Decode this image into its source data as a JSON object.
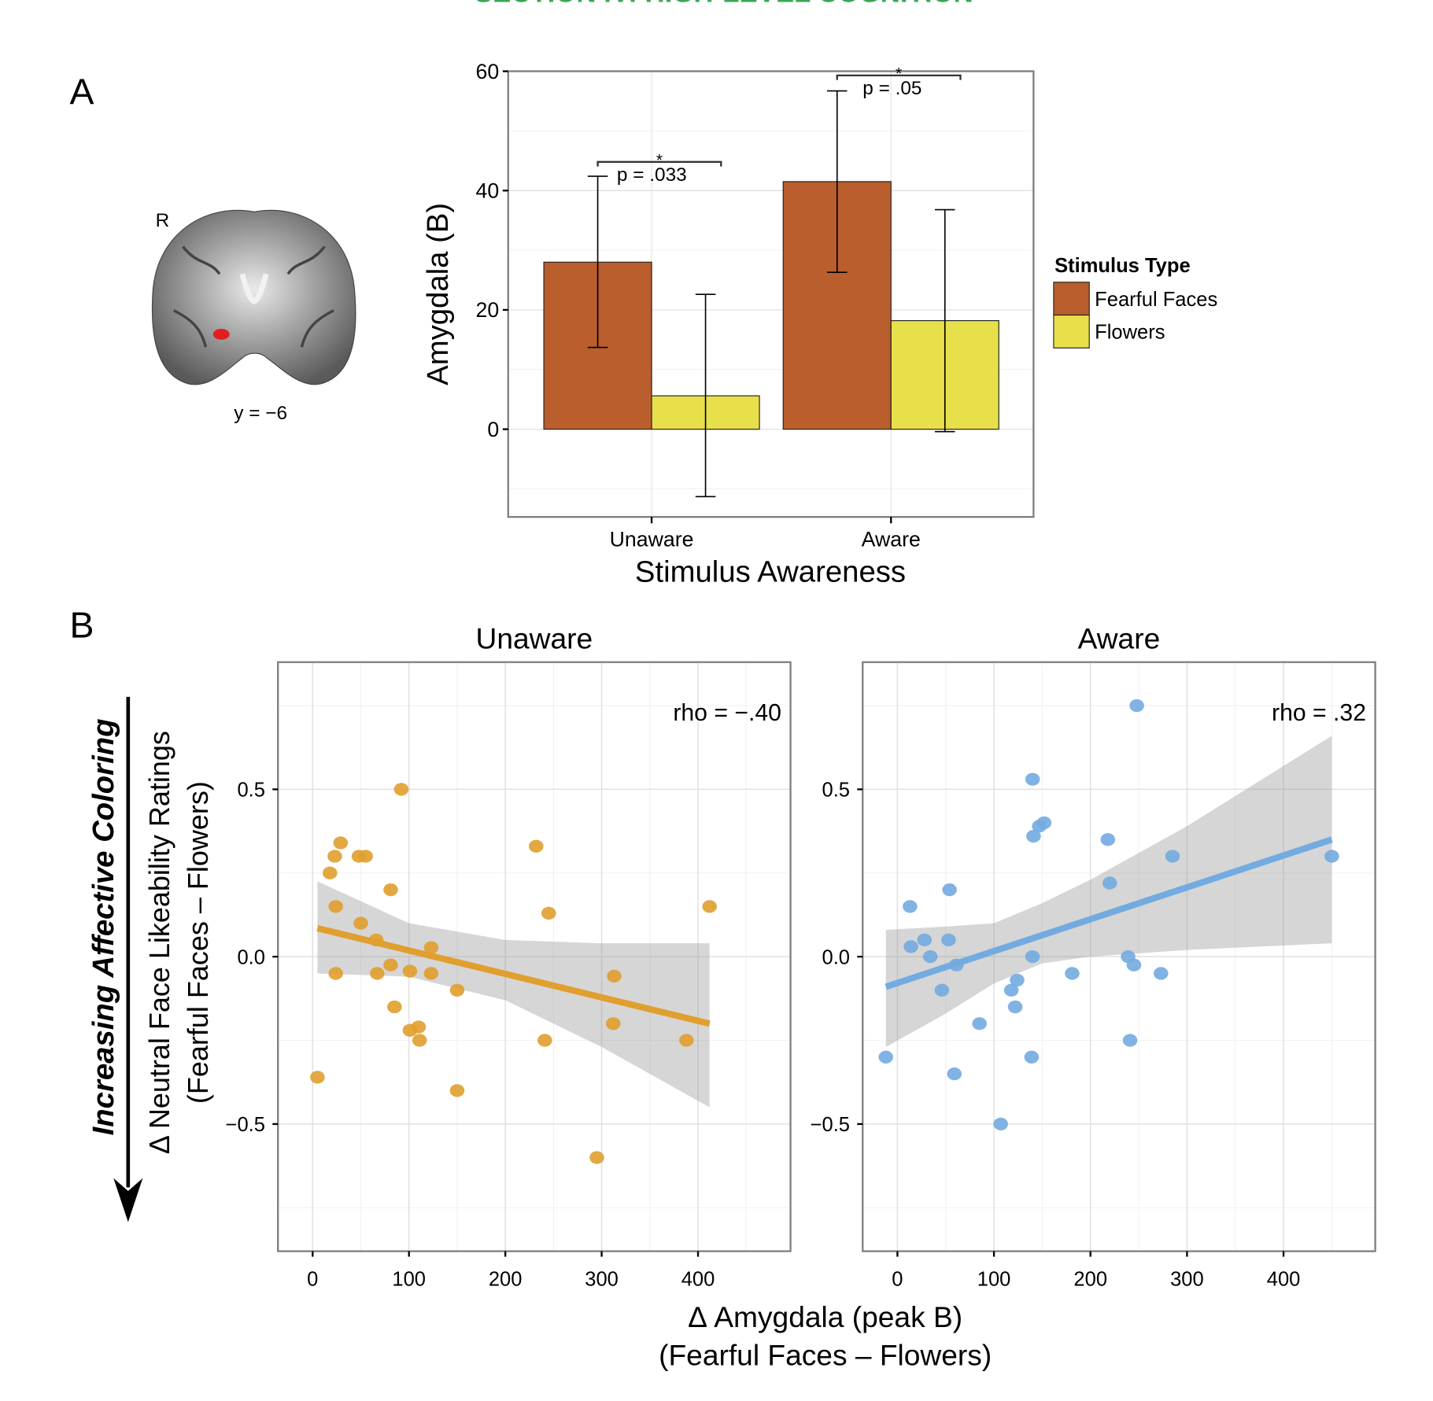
{
  "header": {
    "running_title": "SECTION IV: HIGH-LEVEL COGNITION",
    "color": "#3aa655"
  },
  "panel_labels": {
    "a": "A",
    "b": "B"
  },
  "brain": {
    "side_label": "R",
    "slice_label": "y = −6"
  },
  "colors": {
    "fearful": "#b95e2c",
    "flowers": "#e7e04a",
    "unaware_points": "#e09f2e",
    "aware_points": "#72abe0",
    "ribbon": "#999999"
  },
  "side_annotation": {
    "text": "Increasing Affective Coloring",
    "arrow": "down-arrow"
  },
  "chart_data": [
    {
      "type": "bar",
      "panel": "A",
      "xlabel": "Stimulus Awareness",
      "ylabel": "Amygdala (B)",
      "categories": [
        "Unaware",
        "Aware"
      ],
      "ylim": [
        -14.7,
        60
      ],
      "yticks": [
        0,
        20,
        40,
        60
      ],
      "grid": true,
      "legend": {
        "title": "Stimulus Type",
        "placement": "right"
      },
      "series": [
        {
          "name": "Fearful Faces",
          "values": [
            28.0,
            41.5
          ],
          "error_low": [
            13.7,
            26.3
          ],
          "error_high": [
            42.4,
            56.7
          ]
        },
        {
          "name": "Flowers",
          "values": [
            5.6,
            18.2
          ],
          "error_low": [
            -11.3,
            -0.4
          ],
          "error_high": [
            22.6,
            36.8
          ]
        }
      ],
      "annotations": [
        {
          "category": "Unaware",
          "star": "*",
          "text": "p = .033",
          "bracket_y": 44.8
        },
        {
          "category": "Aware",
          "star": "*",
          "text": "p = .05",
          "bracket_y": 59.3
        }
      ]
    },
    {
      "type": "scatter",
      "panel": "B",
      "title": "Unaware",
      "annotation": "rho = −.40",
      "xlim": [
        -36,
        496
      ],
      "ylim": [
        -0.88,
        0.88
      ],
      "xticks": [
        0,
        100,
        200,
        300,
        400
      ],
      "yticks": [
        -0.5,
        0.0,
        0.5
      ],
      "ytick_labels": [
        "−0.5",
        "0.0",
        "0.5"
      ],
      "grid": true,
      "points": [
        [
          5,
          -0.36
        ],
        [
          18,
          0.25
        ],
        [
          23,
          0.3
        ],
        [
          29,
          0.34
        ],
        [
          24,
          0.15
        ],
        [
          24,
          -0.05
        ],
        [
          48,
          0.3
        ],
        [
          55,
          0.3
        ],
        [
          50,
          0.1
        ],
        [
          66,
          0.05
        ],
        [
          67,
          -0.05
        ],
        [
          81,
          0.2
        ],
        [
          81,
          -0.025
        ],
        [
          85,
          -0.15
        ],
        [
          92,
          0.5
        ],
        [
          101,
          -0.22
        ],
        [
          110,
          -0.21
        ],
        [
          111,
          -0.25
        ],
        [
          101,
          -0.043
        ],
        [
          123,
          0.027
        ],
        [
          123,
          -0.05
        ],
        [
          150,
          -0.1
        ],
        [
          150,
          -0.4
        ],
        [
          232,
          0.33
        ],
        [
          245,
          0.13
        ],
        [
          241,
          -0.25
        ],
        [
          295,
          -0.6
        ],
        [
          313,
          -0.058
        ],
        [
          312,
          -0.2
        ],
        [
          388,
          -0.25
        ],
        [
          412,
          0.15
        ]
      ],
      "fit": {
        "x": [
          5,
          412
        ],
        "y": [
          0.085,
          -0.2
        ]
      },
      "ci": {
        "x": [
          5,
          100,
          200,
          300,
          412
        ],
        "upper": [
          0.225,
          0.1,
          0.05,
          0.04,
          0.04
        ],
        "lower": [
          -0.05,
          -0.06,
          -0.13,
          -0.27,
          -0.45
        ]
      }
    },
    {
      "type": "scatter",
      "panel": "B",
      "title": "Aware",
      "annotation": "rho = .32",
      "xlim": [
        -36,
        495
      ],
      "ylim": [
        -0.88,
        0.88
      ],
      "xticks": [
        0,
        100,
        200,
        300,
        400
      ],
      "yticks": [
        -0.5,
        0.0,
        0.5
      ],
      "ytick_labels": [
        "−0.5",
        "0.0",
        "0.5"
      ],
      "grid": true,
      "points": [
        [
          -12,
          -0.3
        ],
        [
          13,
          0.15
        ],
        [
          14,
          0.03
        ],
        [
          28,
          0.05
        ],
        [
          34,
          0.0
        ],
        [
          46,
          -0.1
        ],
        [
          53,
          0.05
        ],
        [
          54,
          0.2
        ],
        [
          61,
          -0.025
        ],
        [
          59,
          -0.35
        ],
        [
          85,
          -0.2
        ],
        [
          107,
          -0.5
        ],
        [
          118,
          -0.1
        ],
        [
          124,
          -0.07
        ],
        [
          122,
          -0.15
        ],
        [
          139,
          -0.3
        ],
        [
          140,
          0.53
        ],
        [
          140,
          0.0
        ],
        [
          141,
          0.36
        ],
        [
          147,
          0.39
        ],
        [
          152,
          0.4
        ],
        [
          181,
          -0.05
        ],
        [
          218,
          0.35
        ],
        [
          220,
          0.22
        ],
        [
          239,
          0.0
        ],
        [
          241,
          -0.25
        ],
        [
          245,
          -0.025
        ],
        [
          248,
          0.75
        ],
        [
          273,
          -0.05
        ],
        [
          285,
          0.3
        ],
        [
          450,
          0.3
        ]
      ],
      "fit": {
        "x": [
          -12,
          450
        ],
        "y": [
          -0.09,
          0.35
        ]
      },
      "ci": {
        "x": [
          -12,
          50,
          100,
          150,
          200,
          300,
          450
        ],
        "upper": [
          0.08,
          0.09,
          0.1,
          0.16,
          0.23,
          0.39,
          0.66
        ],
        "lower": [
          -0.27,
          -0.17,
          -0.08,
          -0.02,
          0.0,
          0.02,
          0.04
        ]
      }
    }
  ],
  "scatter_axes": {
    "xlabel_line1": "Δ Amygdala (peak B)",
    "xlabel_line2": "(Fearful Faces – Flowers)",
    "ylabel_line1": "Δ Neutral Face Likeability Ratings",
    "ylabel_line2": "(Fearful Faces – Flowers)"
  }
}
